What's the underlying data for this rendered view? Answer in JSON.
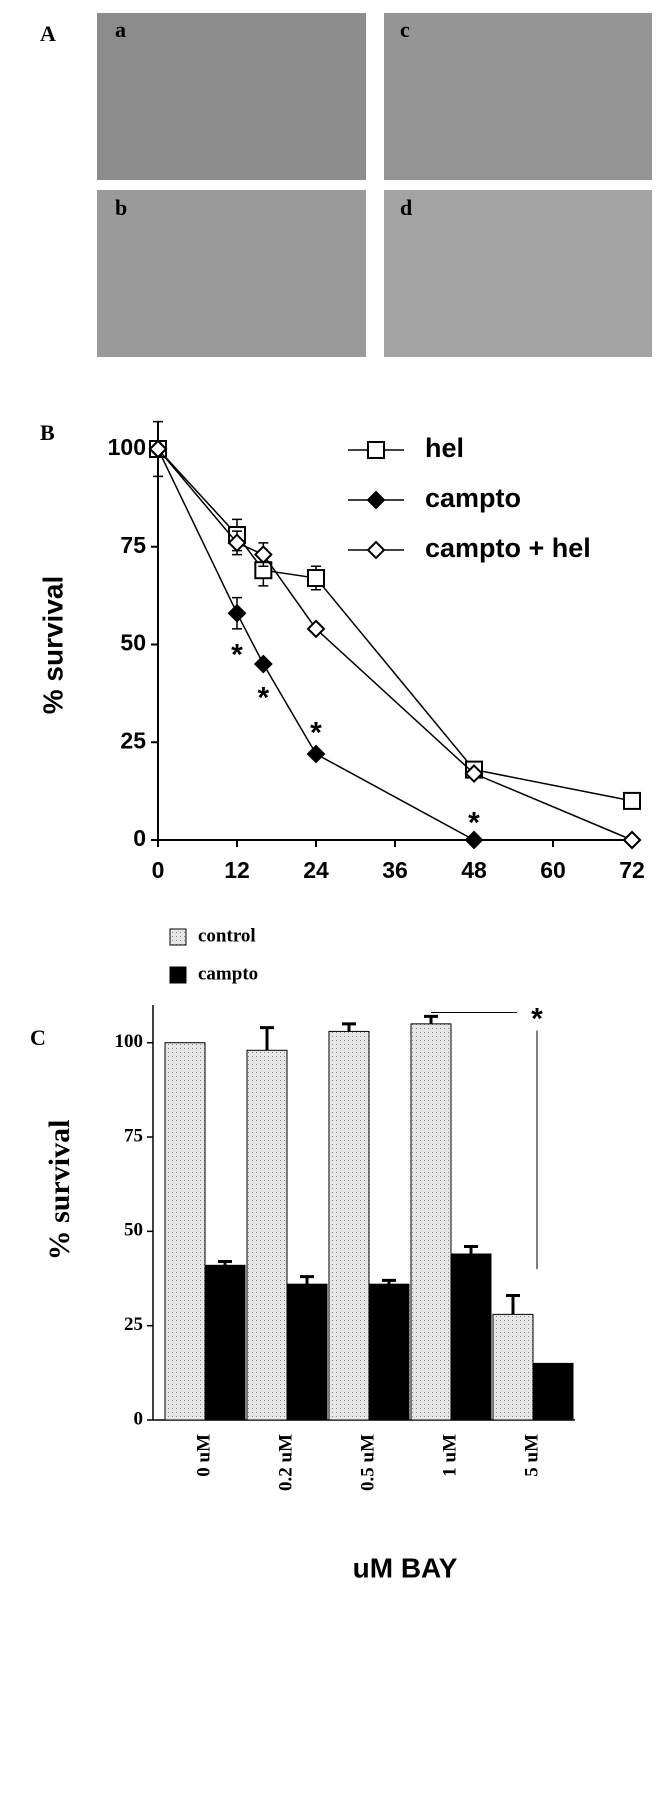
{
  "panel_labels": [
    "A",
    "B",
    "C"
  ],
  "photo_labels": [
    "a",
    "b",
    "c",
    "d"
  ],
  "chart_data": [
    {
      "type": "line",
      "ylabel": "% survival",
      "xlim": [
        0,
        72
      ],
      "xticks": [
        0,
        12,
        24,
        36,
        48,
        60,
        72
      ],
      "ylim": [
        0,
        100
      ],
      "yticks": [
        0,
        25,
        50,
        75,
        100
      ],
      "series": [
        {
          "name": "hel",
          "color": "#000000",
          "marker": "square",
          "filled": false,
          "x": [
            0,
            12,
            16,
            24,
            48,
            72
          ],
          "values": [
            100,
            78,
            69,
            67,
            18,
            10
          ],
          "errors": [
            7,
            4,
            4,
            3,
            2,
            0
          ]
        },
        {
          "name": "campto",
          "color": "#000000",
          "marker": "diamond",
          "filled": true,
          "x": [
            0,
            12,
            16,
            24,
            48,
            72
          ],
          "values": [
            100,
            58,
            45,
            22,
            0,
            0
          ],
          "errors": [
            0,
            4,
            0,
            0,
            0,
            0
          ]
        },
        {
          "name": "campto + hel",
          "color": "#000000",
          "marker": "diamond",
          "filled": false,
          "x": [
            0,
            12,
            16,
            24,
            48,
            72
          ],
          "values": [
            100,
            76,
            73,
            54,
            17,
            0
          ],
          "errors": [
            0,
            3,
            3,
            0,
            0,
            0
          ]
        }
      ],
      "annotations": [
        {
          "text": "*",
          "x": 12,
          "y": 49
        },
        {
          "text": "*",
          "x": 16,
          "y": 38
        },
        {
          "text": "*",
          "x": 24,
          "y": 29
        },
        {
          "text": "*",
          "x": 48,
          "y": 6
        }
      ]
    },
    {
      "type": "bar",
      "xlabel": "uM BAY",
      "ylabel": "% survival",
      "categories": [
        "0 uM",
        "0.2 uM",
        "0.5 uM",
        "1 uM",
        "5 uM"
      ],
      "ylim": [
        0,
        110
      ],
      "yticks": [
        0,
        25,
        50,
        75,
        100
      ],
      "series": [
        {
          "name": "control",
          "color": "#d9d9d9",
          "values": [
            100,
            98,
            103,
            105,
            28
          ],
          "errors": [
            0,
            6,
            2,
            2,
            5
          ]
        },
        {
          "name": "campto",
          "color": "#000000",
          "values": [
            41,
            36,
            36,
            44,
            15
          ],
          "errors": [
            1,
            2,
            1,
            2,
            0
          ]
        }
      ],
      "annotations": [
        {
          "text": "*",
          "y": 108
        }
      ]
    }
  ]
}
